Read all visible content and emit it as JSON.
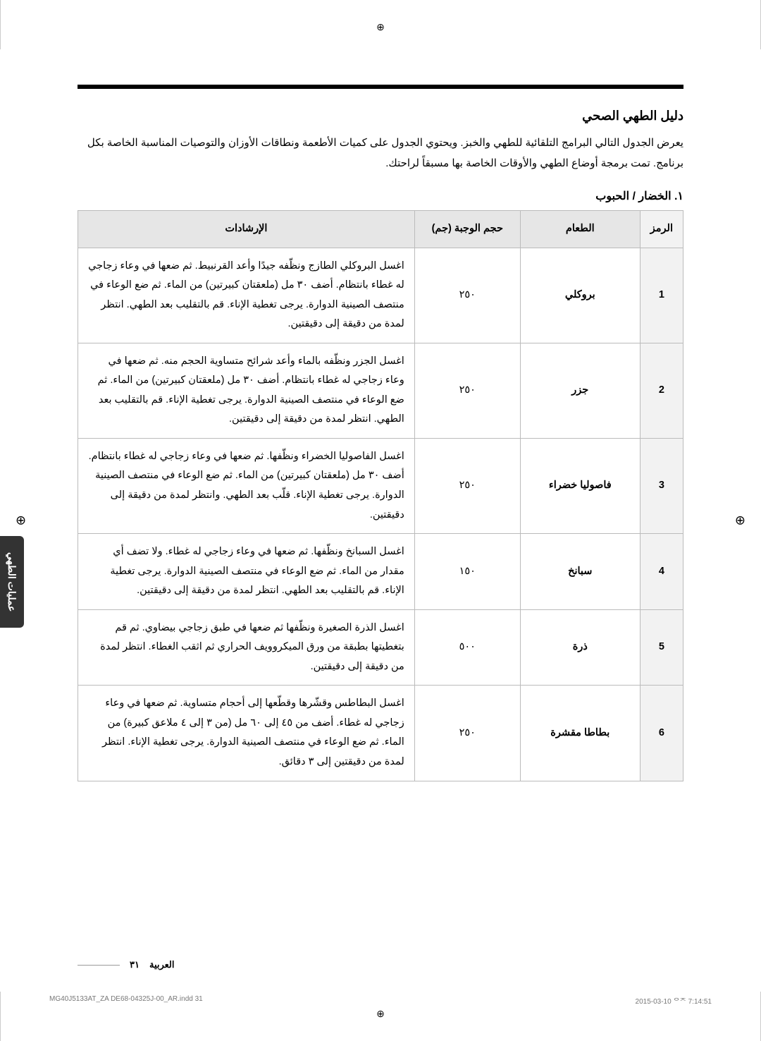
{
  "page_title": "دليل الطهي الصحي",
  "intro": "يعرض الجدول التالي البرامج التلقائية للطهي والخبز. ويحتوي الجدول على كميات الأطعمة ونطاقات الأوزان والتوصيات المناسبة الخاصة بكل برنامج. تمت برمجة أوضاع الطهي والأوقات الخاصة بها مسبقاً لراحتك.",
  "section_heading": "١. الخضار / الحبوب",
  "headers": {
    "code": "الرمز",
    "food": "الطعام",
    "weight": "حجم الوجبة (جم)",
    "instructions": "الإرشادات"
  },
  "rows": [
    {
      "code": "1",
      "food": "بروكلي",
      "weight": "٢٥٠",
      "instructions": "اغسل البروكلي الطازج ونظّفه جيدًا وأعد القرنبيط. ثم ضعها في وعاء زجاجي له غطاء بانتظام. أضف ٣٠ مل (ملعقتان كبيرتين) من الماء. ثم ضع الوعاء في منتصف الصينية الدوارة. يرجى تغطية الإناء. قم بالتقليب بعد الطهي. انتظر لمدة من دقيقة إلى دقيقتين."
    },
    {
      "code": "2",
      "food": "جزر",
      "weight": "٢٥٠",
      "instructions": "اغسل الجزر ونظّفه بالماء وأعد شرائح متساوية الحجم منه. ثم ضعها في وعاء زجاجي له غطاء بانتظام. أضف ٣٠ مل (ملعقتان كبيرتين) من الماء. ثم ضع الوعاء في منتصف الصينية الدوارة. يرجى تغطية الإناء. قم بالتقليب بعد الطهي. انتظر لمدة من دقيقة إلى دقيقتين."
    },
    {
      "code": "3",
      "food": "فاصوليا خضراء",
      "weight": "٢٥٠",
      "instructions": "اغسل الفاصوليا الخضراء ونظّفها. ثم ضعها في وعاء زجاجي له غطاء بانتظام. أضف ٣٠ مل (ملعقتان كبيرتين) من الماء. ثم ضع الوعاء في منتصف الصينية الدوارة. يرجى تغطية الإناء. قلّب بعد الطهي. وانتظر لمدة من دقيقة إلى دقيقتين."
    },
    {
      "code": "4",
      "food": "سبانخ",
      "weight": "١٥٠",
      "instructions": "اغسل السبانخ ونظّفها. ثم ضعها في وعاء زجاجي له غطاء. ولا تضف أي مقدار من الماء. ثم ضع الوعاء في منتصف الصينية الدوارة. يرجى تغطية الإناء. قم بالتقليب بعد الطهي. انتظر لمدة من دقيقة إلى دقيقتين."
    },
    {
      "code": "5",
      "food": "ذرة",
      "weight": "٥٠٠",
      "instructions": "اغسل الذرة الصغيرة ونظّفها ثم ضعها في طبق زجاجي بيضاوي. ثم قم بتغطيتها بطبقة من ورق الميكروويف الحراري ثم اثقب الغطاء. انتظر لمدة من دقيقة إلى دقيقتين."
    },
    {
      "code": "6",
      "food": "بطاطا مقشرة",
      "weight": "٢٥٠",
      "instructions": "اغسل البطاطس وقشّرها وقطّعها إلى أحجام متساوية. ثم ضعها في وعاء زجاجي له غطاء. أضف من ٤٥ إلى ٦٠ مل (من ٣ إلى ٤ ملاعق كبيرة) من الماء. ثم ضع الوعاء في منتصف الصينية الدوارة. يرجى تغطية الإناء. انتظر لمدة من دقيقتين إلى ٣ دقائق."
    }
  ],
  "side_tab": "عمليات الطهي",
  "footer_lang": "العربية",
  "footer_pagenum": "٣١",
  "print_meta_left": "MG40J5133AT_ZA DE68-04325J-00_AR.indd   31",
  "print_meta_right": "2015-03-10   ᄋᄌ 7:14:51"
}
